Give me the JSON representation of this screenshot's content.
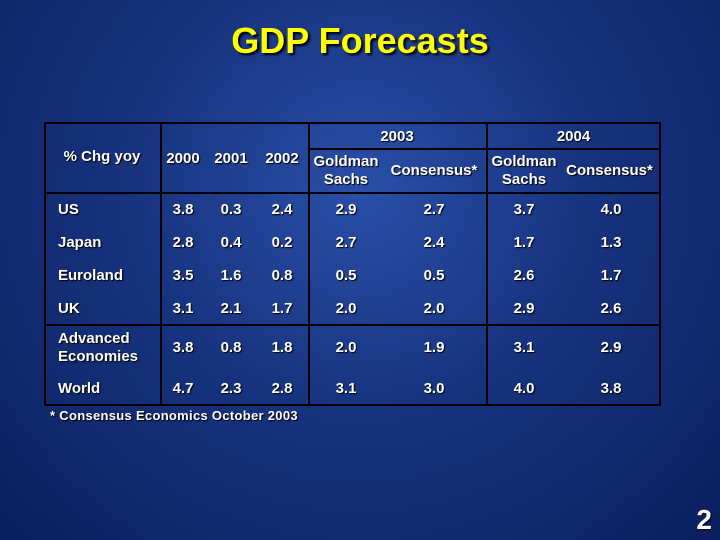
{
  "title": "GDP Forecasts",
  "table": {
    "row_header_label": "% Chg yoy",
    "year_groups": [
      "2003",
      "2004"
    ],
    "columns": [
      "2000",
      "2001",
      "2002",
      "Goldman Sachs",
      "Consensus*",
      "Goldman Sachs",
      "Consensus*"
    ],
    "rows": [
      {
        "label": "US",
        "values": [
          "3.8",
          "0.3",
          "2.4",
          "2.9",
          "2.7",
          "3.7",
          "4.0"
        ]
      },
      {
        "label": "Japan",
        "values": [
          "2.8",
          "0.4",
          "0.2",
          "2.7",
          "2.4",
          "1.7",
          "1.3"
        ]
      },
      {
        "label": "Euroland",
        "values": [
          "3.5",
          "1.6",
          "0.8",
          "0.5",
          "0.5",
          "2.6",
          "1.7"
        ]
      },
      {
        "label": "UK",
        "values": [
          "3.1",
          "2.1",
          "1.7",
          "2.0",
          "2.0",
          "2.9",
          "2.6"
        ]
      },
      {
        "label": "Advanced Economies",
        "values": [
          "3.8",
          "0.8",
          "1.8",
          "2.0",
          "1.9",
          "3.1",
          "2.9"
        ]
      },
      {
        "label": "World",
        "values": [
          "4.7",
          "2.3",
          "2.8",
          "3.1",
          "3.0",
          "4.0",
          "3.8"
        ]
      }
    ]
  },
  "footnote": "*  Consensus Economics October 2003",
  "page_number": "2"
}
